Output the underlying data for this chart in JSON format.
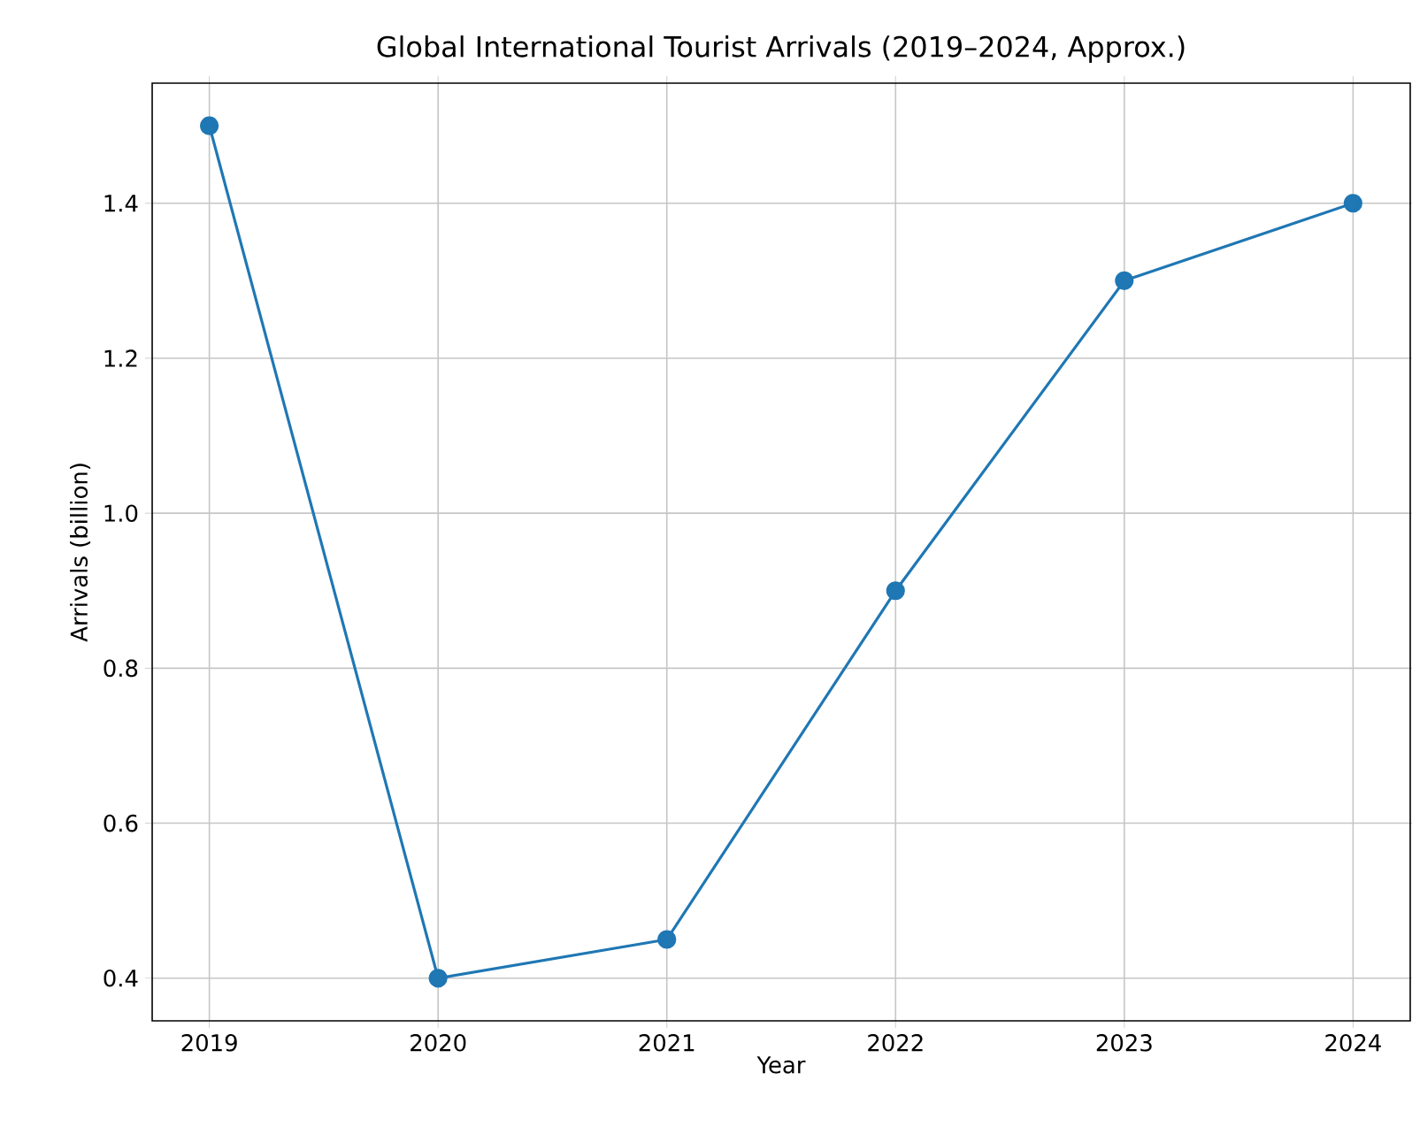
{
  "chart_data": {
    "type": "line",
    "title": "Global International Tourist Arrivals (2019–2024, Approx.)",
    "xlabel": "Year",
    "ylabel": "Arrivals (billion)",
    "x": [
      2019,
      2020,
      2021,
      2022,
      2023,
      2024
    ],
    "series": [
      {
        "color": "#1f77b4",
        "values": [
          1.5,
          0.4,
          0.45,
          0.9,
          1.3,
          1.4
        ]
      }
    ],
    "xlim": [
      2018.75,
      2024.25
    ],
    "ylim": [
      0.345,
      1.555
    ],
    "xticks": [
      2019,
      2020,
      2021,
      2022,
      2023,
      2024
    ],
    "yticks": [
      {
        "value": 0.4,
        "label": "0.4"
      },
      {
        "value": 0.6,
        "label": "0.6"
      },
      {
        "value": 0.8,
        "label": "0.8"
      },
      {
        "value": 1.0,
        "label": "1.0"
      },
      {
        "value": 1.2,
        "label": "1.2"
      },
      {
        "value": 1.4,
        "label": "1.4"
      }
    ],
    "grid": true,
    "marker": "circle",
    "line_style": "solid"
  }
}
